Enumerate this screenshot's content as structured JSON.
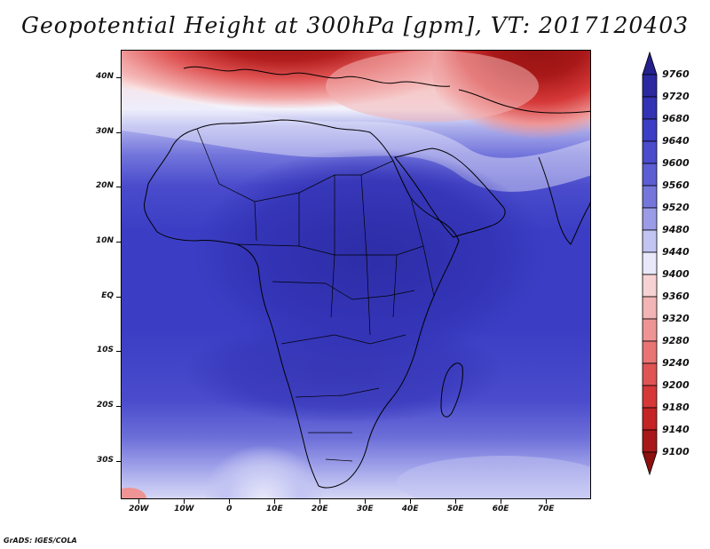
{
  "title": "Geopotential Height at 300hPa [gpm], VT: 2017120403",
  "credit": "GrADS: IGES/COLA",
  "map": {
    "lon_range": [
      -24,
      80
    ],
    "lat_range": [
      -37,
      45
    ],
    "lat_ticks": [
      {
        "lat": 40,
        "label": "40N"
      },
      {
        "lat": 30,
        "label": "30N"
      },
      {
        "lat": 20,
        "label": "20N"
      },
      {
        "lat": 10,
        "label": "10N"
      },
      {
        "lat": 0,
        "label": "EQ"
      },
      {
        "lat": -10,
        "label": "10S"
      },
      {
        "lat": -20,
        "label": "20S"
      },
      {
        "lat": -30,
        "label": "30S"
      }
    ],
    "lon_ticks": [
      {
        "lon": -20,
        "label": "20W"
      },
      {
        "lon": -10,
        "label": "10W"
      },
      {
        "lon": 0,
        "label": "0"
      },
      {
        "lon": 10,
        "label": "10E"
      },
      {
        "lon": 20,
        "label": "20E"
      },
      {
        "lon": 30,
        "label": "30E"
      },
      {
        "lon": 40,
        "label": "40E"
      },
      {
        "lon": 50,
        "label": "50E"
      },
      {
        "lon": 60,
        "label": "60E"
      },
      {
        "lon": 70,
        "label": "70E"
      }
    ]
  },
  "colorbar": {
    "levels": [
      "9760",
      "9720",
      "9680",
      "9640",
      "9600",
      "9560",
      "9520",
      "9480",
      "9440",
      "9400",
      "9360",
      "9320",
      "9280",
      "9240",
      "9200",
      "9180",
      "9140",
      "9100"
    ],
    "colors": [
      "#24208c",
      "#2a29a0",
      "#3232b4",
      "#3b3ec4",
      "#4a4ccc",
      "#5c5ed4",
      "#7476dc",
      "#9a9ce8",
      "#c2c4f2",
      "#e8e8fa",
      "#f6d2d2",
      "#f2b4b4",
      "#ee9494",
      "#e87474",
      "#e05454",
      "#d63838",
      "#c42424",
      "#a81818",
      "#8c1010"
    ]
  }
}
